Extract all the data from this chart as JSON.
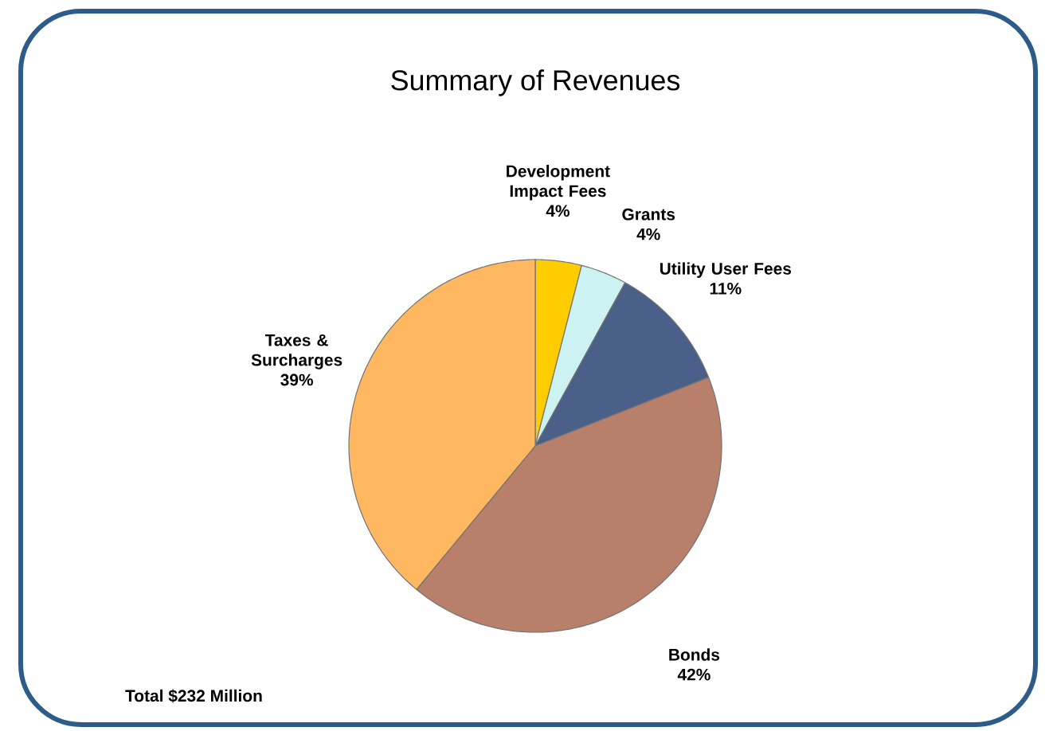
{
  "chart_data": {
    "type": "pie",
    "title": "Summary of Revenues",
    "categories": [
      "Development Impact Fees",
      "Grants",
      "Utility User Fees",
      "Bonds",
      "Taxes & Surcharges"
    ],
    "values": [
      4,
      4,
      11,
      42,
      39
    ],
    "value_labels": [
      "4%",
      "4%",
      "11%",
      "42%",
      "39%"
    ],
    "colors": [
      "#ffcc00",
      "#ccf2f2",
      "#4a6088",
      "#b8806a",
      "#ffb860"
    ],
    "annotations": [
      "Total $232 Million"
    ],
    "legend": false
  }
}
